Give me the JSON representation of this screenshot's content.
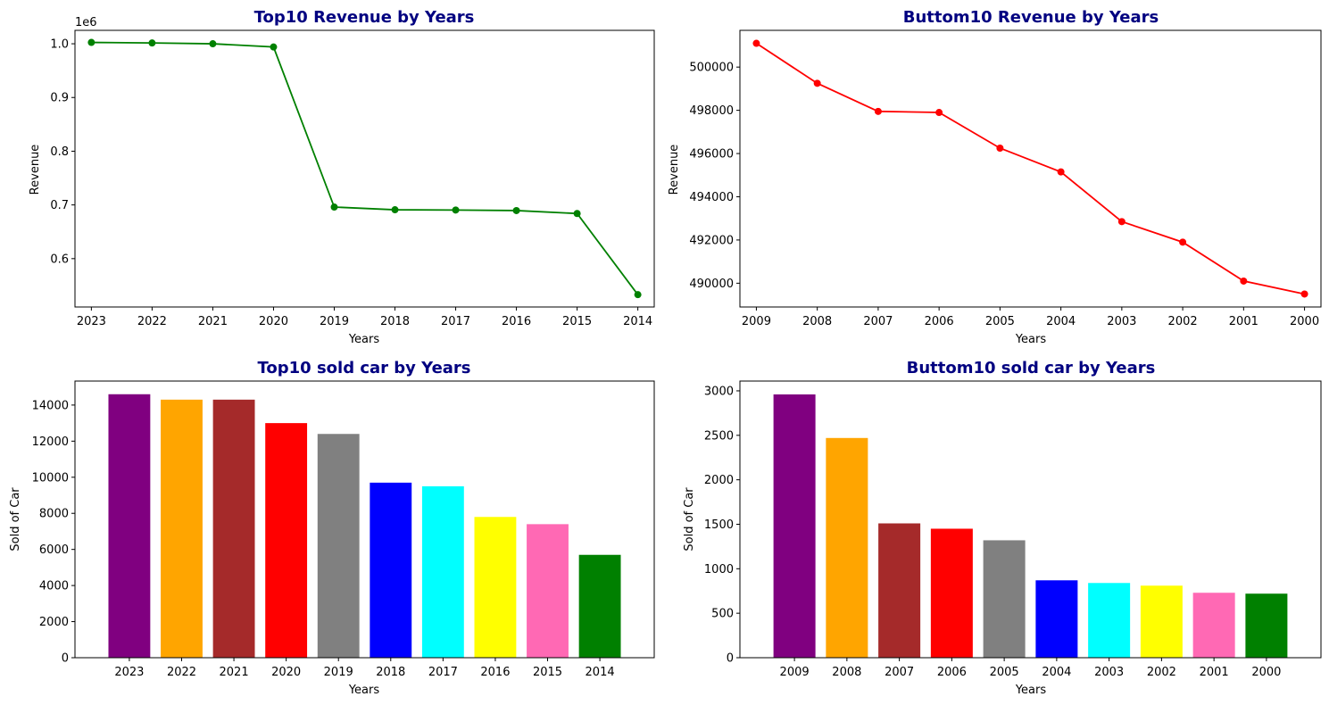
{
  "chart_data": [
    {
      "id": "top10-revenue",
      "type": "line",
      "title": "Top10 Revenue by Years",
      "xlabel": "Years",
      "ylabel": "Revenue",
      "scale_label": "1e6",
      "categories": [
        "2023",
        "2022",
        "2021",
        "2020",
        "2019",
        "2018",
        "2017",
        "2016",
        "2015",
        "2014"
      ],
      "values": [
        1002500,
        1001500,
        1000000,
        994000,
        696000,
        691000,
        690500,
        689500,
        684000,
        533000
      ],
      "yticks": [
        0.6,
        0.7,
        0.8,
        0.9,
        1.0
      ],
      "ytick_labels": [
        "0.6",
        "0.7",
        "0.8",
        "0.9",
        "1.0"
      ],
      "ytick_factor": 1000000,
      "ylim": [
        510000,
        1025000
      ],
      "color": "#008000",
      "grid": false
    },
    {
      "id": "bottom10-revenue",
      "type": "line",
      "title": "Buttom10 Revenue by Years",
      "xlabel": "Years",
      "ylabel": "Revenue",
      "categories": [
        "2009",
        "2008",
        "2007",
        "2006",
        "2005",
        "2004",
        "2003",
        "2002",
        "2001",
        "2000"
      ],
      "values": [
        501100,
        499250,
        497950,
        497900,
        496250,
        495150,
        492850,
        491900,
        490100,
        489500
      ],
      "yticks": [
        490000,
        492000,
        494000,
        496000,
        498000,
        500000
      ],
      "ytick_labels": [
        "490000",
        "492000",
        "494000",
        "496000",
        "498000",
        "500000"
      ],
      "ytick_factor": 1,
      "ylim": [
        488900,
        501700
      ],
      "color": "#ff0000",
      "grid": false
    },
    {
      "id": "top10-sold",
      "type": "bar",
      "title": "Top10 sold car by Years",
      "xlabel": "Years",
      "ylabel": "Sold of Car",
      "categories": [
        "2023",
        "2022",
        "2021",
        "2020",
        "2019",
        "2018",
        "2017",
        "2016",
        "2015",
        "2014"
      ],
      "values": [
        14600,
        14300,
        14300,
        13000,
        12400,
        9700,
        9500,
        7800,
        7400,
        5700
      ],
      "yticks": [
        0,
        2000,
        4000,
        6000,
        8000,
        10000,
        12000,
        14000
      ],
      "ytick_labels": [
        "0",
        "2000",
        "4000",
        "6000",
        "8000",
        "10000",
        "12000",
        "14000"
      ],
      "ytick_factor": 1,
      "ylim": [
        0,
        15330
      ],
      "colors": [
        "#800080",
        "#ffa500",
        "#a52a2a",
        "#ff0000",
        "#808080",
        "#0000ff",
        "#00ffff",
        "#ffff00",
        "#ff69b4",
        "#008000"
      ],
      "grid": false
    },
    {
      "id": "bottom10-sold",
      "type": "bar",
      "title": "Buttom10 sold car by Years",
      "xlabel": "Years",
      "ylabel": "Sold of Car",
      "categories": [
        "2009",
        "2008",
        "2007",
        "2006",
        "2005",
        "2004",
        "2003",
        "2002",
        "2001",
        "2000"
      ],
      "values": [
        2960,
        2470,
        1510,
        1450,
        1320,
        870,
        840,
        810,
        730,
        720
      ],
      "yticks": [
        0,
        500,
        1000,
        1500,
        2000,
        2500,
        3000
      ],
      "ytick_labels": [
        "0",
        "500",
        "1000",
        "1500",
        "2000",
        "2500",
        "3000"
      ],
      "ytick_factor": 1,
      "ylim": [
        0,
        3110
      ],
      "colors": [
        "#800080",
        "#ffa500",
        "#a52a2a",
        "#ff0000",
        "#808080",
        "#0000ff",
        "#00ffff",
        "#ffff00",
        "#ff69b4",
        "#008000"
      ],
      "grid": false
    }
  ]
}
